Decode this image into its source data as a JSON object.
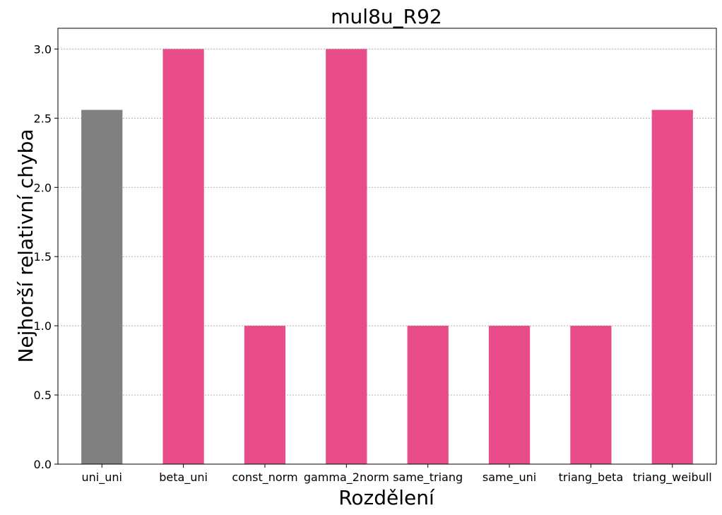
{
  "chart_data": {
    "type": "bar",
    "title": "mul8u_R92",
    "xlabel": "Rozdělení",
    "ylabel": "Nejhorší relativní chyba",
    "categories": [
      "uni_uni",
      "beta_uni",
      "const_norm",
      "gamma_2norm",
      "same_triang",
      "same_uni",
      "triang_beta",
      "triang_weibull"
    ],
    "values": [
      2.56,
      3.0,
      1.0,
      3.0,
      1.0,
      1.0,
      1.0,
      2.56
    ],
    "bar_colors": [
      "#808080",
      "#e84d8a",
      "#e84d8a",
      "#e84d8a",
      "#e84d8a",
      "#e84d8a",
      "#e84d8a",
      "#e84d8a"
    ],
    "ylim": [
      0,
      3.15
    ],
    "yticks": [
      0.0,
      0.5,
      1.0,
      1.5,
      2.0,
      2.5,
      3.0
    ],
    "ytick_labels": [
      "0.0",
      "0.5",
      "1.0",
      "1.5",
      "2.0",
      "2.5",
      "3.0"
    ],
    "grid": "y-dotted",
    "legend": "none"
  }
}
